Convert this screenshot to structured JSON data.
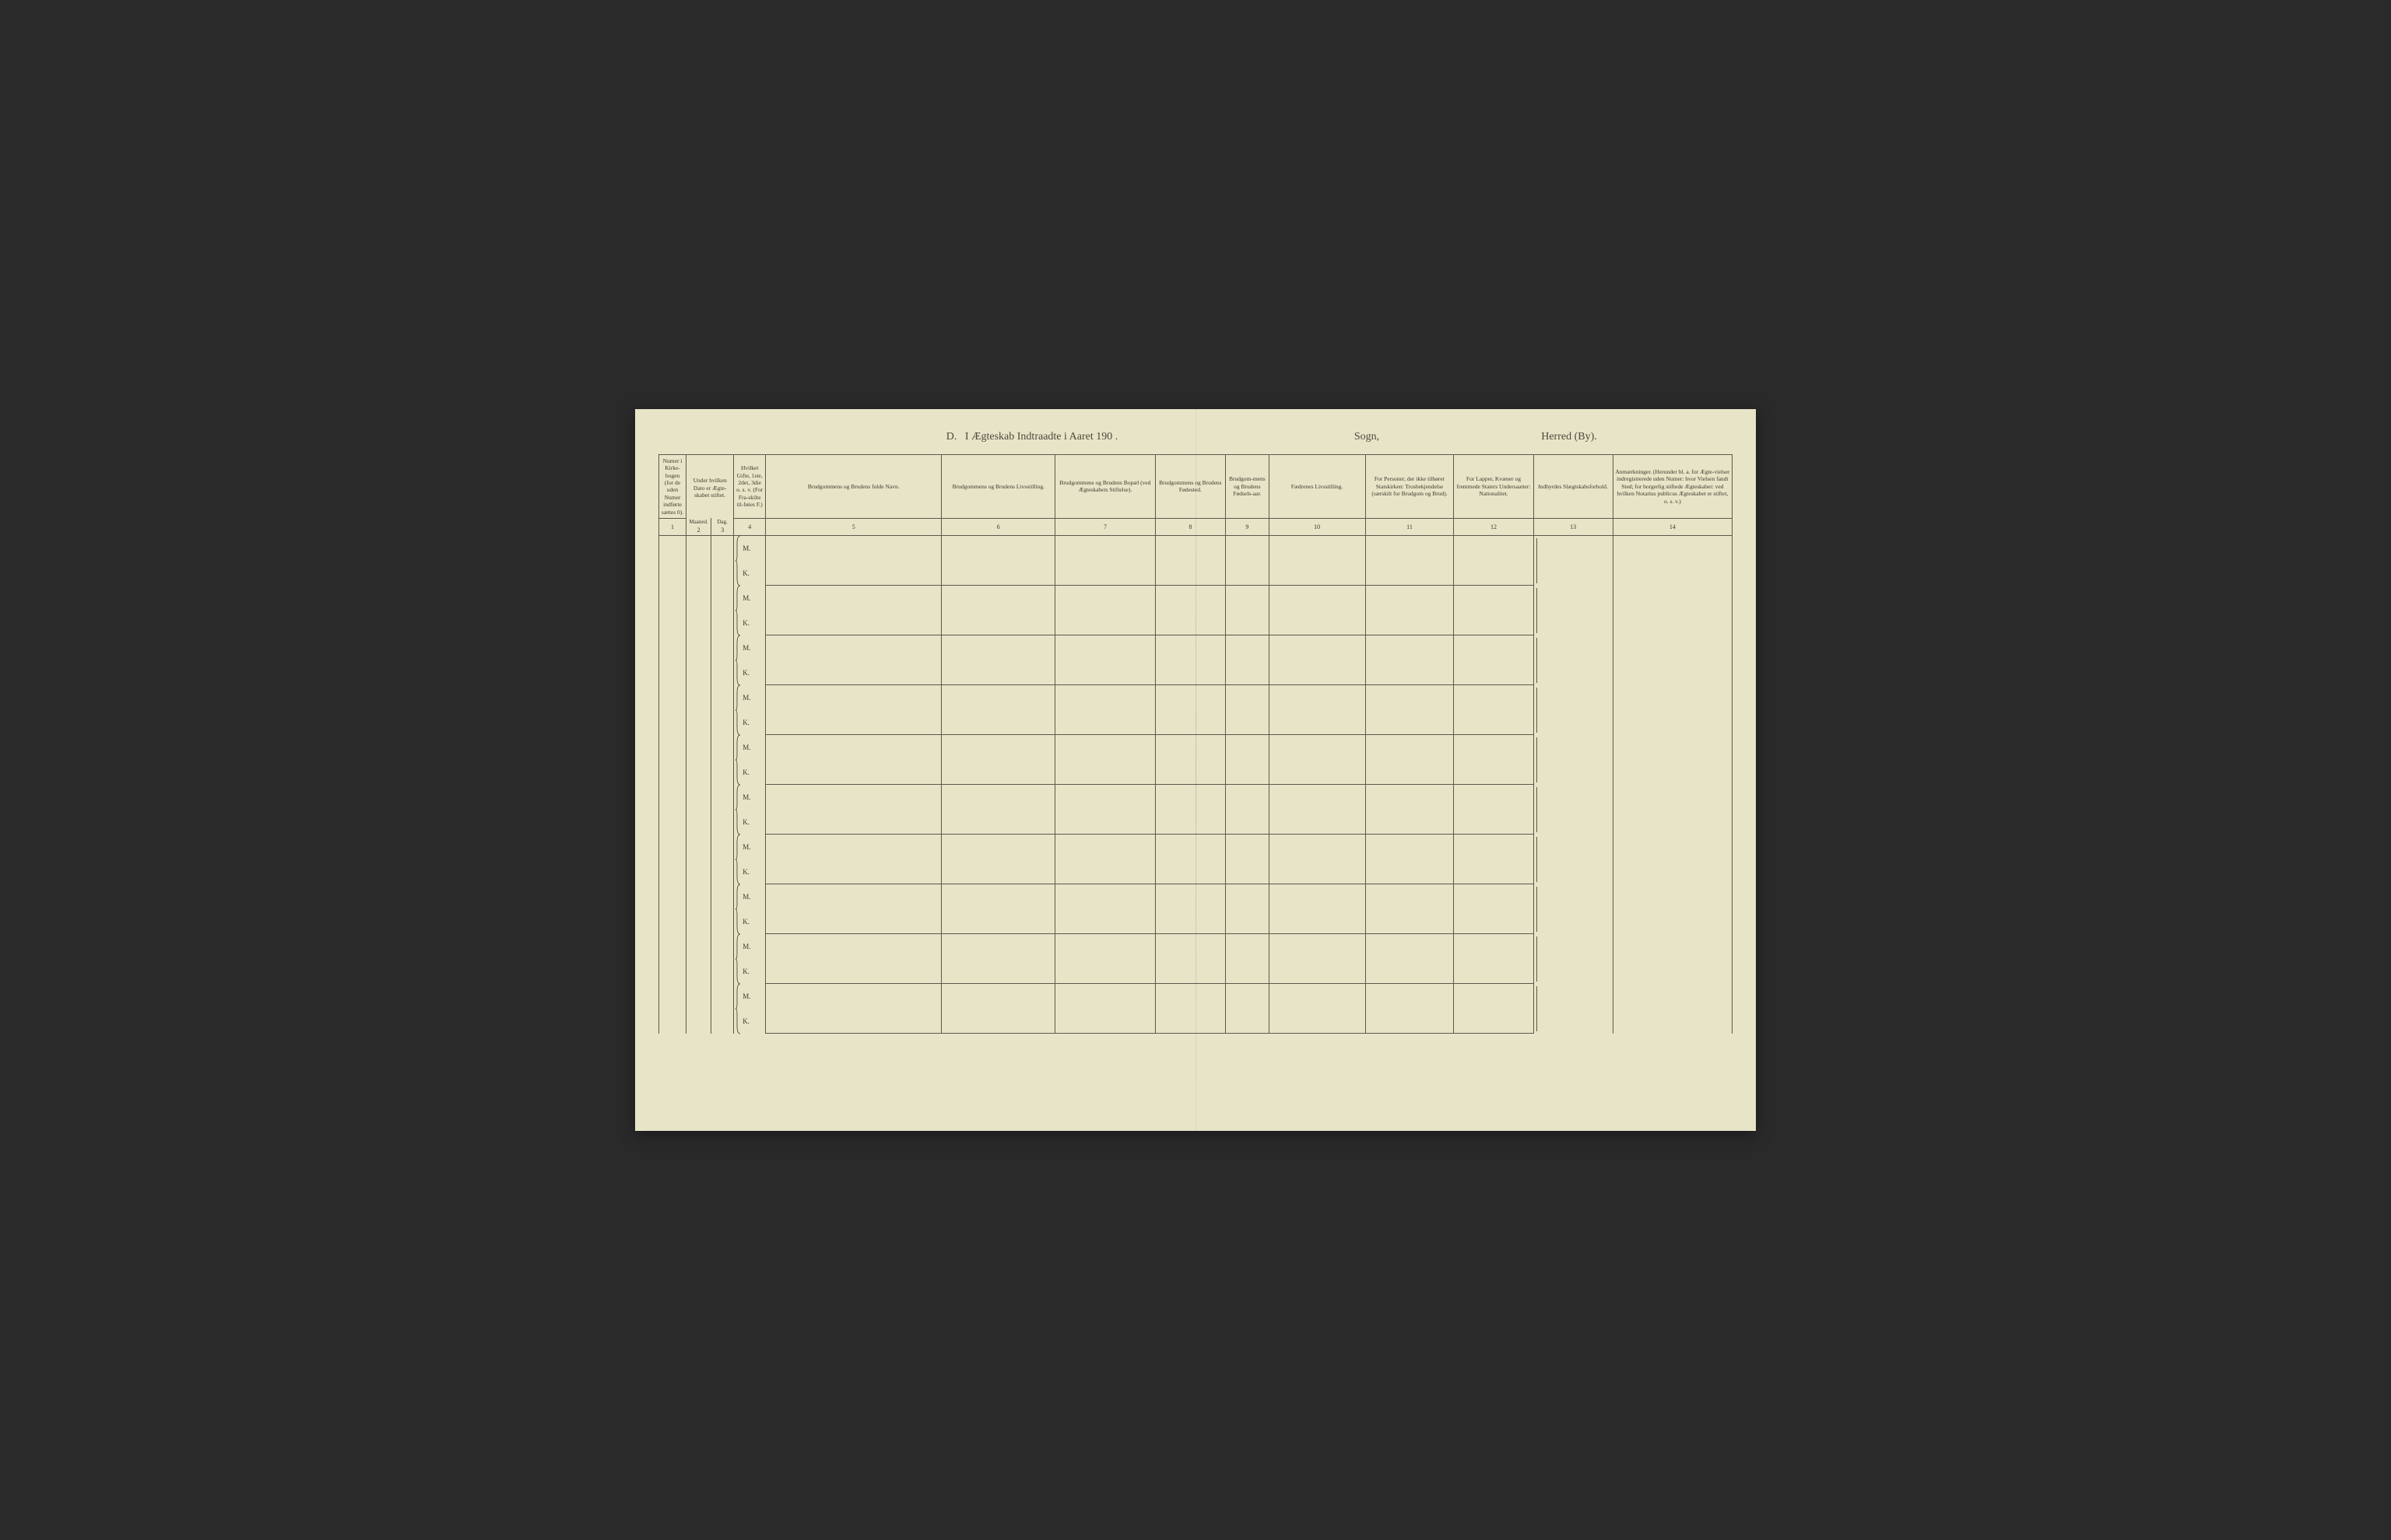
{
  "title": {
    "section": "D.",
    "main": "I Ægteskab Indtraadte i Aaret 190   .",
    "sogn_label": "Sogn,",
    "herred_label": "Herred (By)."
  },
  "columns": [
    {
      "num": "1",
      "header": "Numer i Kirke-bogen (for de uden Numer indførte sættes 0)."
    },
    {
      "num": "2",
      "header": "Under hvilken Dato er Ægte-skabet stiftet.",
      "sub1": "Maaned."
    },
    {
      "num": "3",
      "header": "",
      "sub1": "Dag."
    },
    {
      "num": "4",
      "header": "Hvilket Gifte, 1ste, 2det, 3die o. s. v. (For Fra-skilte til-føies F.)"
    },
    {
      "num": "5",
      "header": "Brudgommens og Brudens fulde Navn."
    },
    {
      "num": "6",
      "header": "Brudgommens og Brudens Livsstilling."
    },
    {
      "num": "7",
      "header": "Brudgommens og Brudens Bopæl (ved Ægteskabets Stiftelse)."
    },
    {
      "num": "8",
      "header": "Brudgommens og Brudens Fødested."
    },
    {
      "num": "9",
      "header": "Brudgom-mens og Brudens Fødsels-aar."
    },
    {
      "num": "10",
      "header": "Fædrenes Livsstilling."
    },
    {
      "num": "11",
      "header": "For Personer, der ikke tilhører Statskirken: Trosbekjendelse (særskilt for Brudgom og Brud)."
    },
    {
      "num": "12",
      "header": "For Lapper, Kvæner og fremmede Staters Undersaatter: Nationalitet."
    },
    {
      "num": "13",
      "header": "Indbyrdes Slægtskabsforhold."
    },
    {
      "num": "14",
      "header": "Anmærkninger. (Herunder bl. a. for Ægte-vielser indregistrerede uden Numer: hvor Vielsen fandt Sted; for borgerlig stiftede Ægteskaber: ved hvilken Notarius publicus Ægteskabet er stiftet, o. s. v.)"
    }
  ],
  "row_labels": {
    "m": "M.",
    "k": "K."
  },
  "num_record_rows": 10,
  "colors": {
    "paper": "#e8e4c8",
    "ink": "#3a3a2a",
    "rule": "#5a5a4a",
    "background": "#2a2a2a"
  },
  "typography": {
    "title_fontsize_pt": 14,
    "header_fontsize_pt": 7.5,
    "colnum_fontsize_pt": 8,
    "mk_fontsize_pt": 9,
    "font_family": "Georgia, Times New Roman, serif"
  },
  "layout": {
    "aspect_ratio": "3072:1980",
    "column_widths_pct": [
      2.4,
      2.2,
      2.0,
      2.8,
      15.5,
      10.0,
      8.8,
      6.2,
      3.8,
      8.5,
      7.8,
      7.0,
      7.0,
      10.5
    ]
  }
}
